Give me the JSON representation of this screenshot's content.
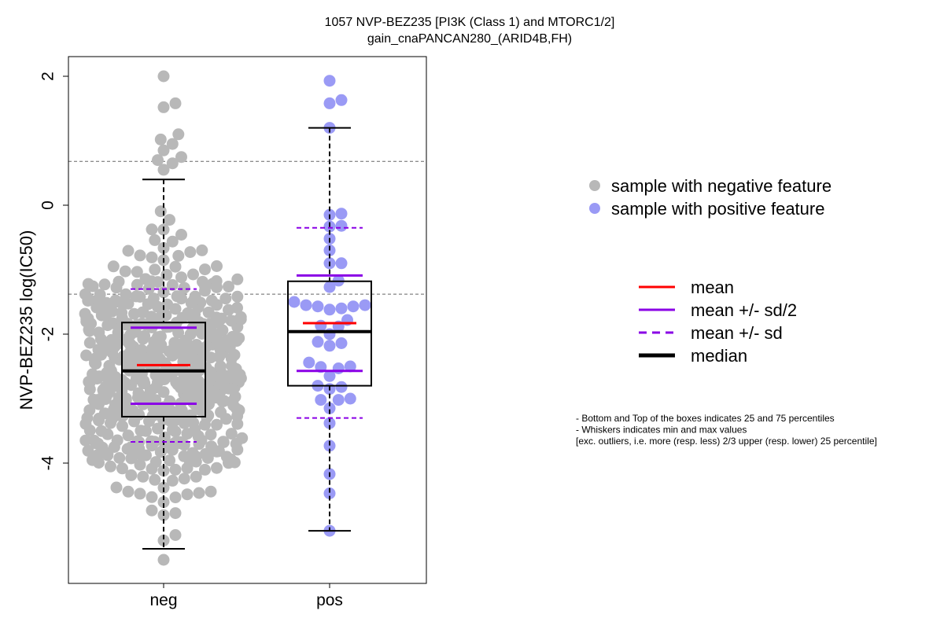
{
  "chart_data": {
    "type": "scatter",
    "subtype": "boxplot-with-beeswarm",
    "title_lines": [
      "1057 NVP-BEZ235 [PI3K (Class 1) and MTORC1/2]",
      "gain_cnaPANCAN280_(ARID4B,FH)"
    ],
    "ylabel": "NVP-BEZ235 log(IC50)",
    "xlabel": "",
    "categories": [
      "neg",
      "pos"
    ],
    "ylim": [
      -5.8,
      2.3
    ],
    "yticks": [
      -4,
      -2,
      0,
      2
    ],
    "ytick_labels": [
      "-4",
      "-2",
      "0",
      "2"
    ],
    "reference_lines": [
      0.68,
      -1.38
    ],
    "colors": {
      "neg_points": "#b8b8b8",
      "pos_points": "#9a9af5",
      "mean": "#ff0000",
      "sd": "#8a00e6",
      "median": "#000000",
      "reference": "#666666"
    },
    "groups": [
      {
        "name": "neg",
        "q1": -3.28,
        "median": -2.57,
        "q3": -1.82,
        "mean": -2.48,
        "mean_minus_half_sd": -3.08,
        "mean_plus_half_sd": -1.9,
        "mean_minus_sd": -3.67,
        "mean_plus_sd": -1.3,
        "whisker_low": -5.33,
        "whisker_high": 0.4,
        "n_points_approx": 560,
        "points": []
      },
      {
        "name": "pos",
        "q1": -2.8,
        "median": -1.96,
        "q3": -1.18,
        "mean": -1.83,
        "mean_minus_half_sd": -2.57,
        "mean_plus_half_sd": -1.09,
        "mean_minus_sd": -3.3,
        "mean_plus_sd": -0.35,
        "whisker_low": -5.05,
        "whisker_high": 1.2,
        "points": [
          1.93,
          1.63,
          1.58,
          1.2,
          -0.13,
          -0.15,
          -0.32,
          -0.33,
          -0.52,
          -0.7,
          -0.9,
          -0.9,
          -1.17,
          -1.27,
          -1.5,
          -1.55,
          -1.55,
          -1.57,
          -1.57,
          -1.6,
          -1.62,
          -1.78,
          -1.87,
          -1.88,
          -2.0,
          -2.12,
          -2.14,
          -2.18,
          -2.44,
          -2.5,
          -2.51,
          -2.53,
          -2.65,
          -2.8,
          -2.82,
          -2.85,
          -3.0,
          -3.02,
          -3.02,
          -3.15,
          -3.38,
          -3.73,
          -4.17,
          -4.47,
          -5.05
        ]
      }
    ],
    "legend_points": [
      {
        "label": "sample with negative feature",
        "color": "#b8b8b8"
      },
      {
        "label": "sample with positive feature",
        "color": "#9a9af5"
      }
    ],
    "legend_lines": [
      {
        "label": "mean",
        "color": "#ff0000",
        "style": "solid"
      },
      {
        "label": "mean +/- sd/2",
        "color": "#8a00e6",
        "style": "solid"
      },
      {
        "label": "mean +/- sd",
        "color": "#8a00e6",
        "style": "dashed"
      },
      {
        "label": "median",
        "color": "#000000",
        "style": "thick"
      }
    ],
    "notes": [
      "- Bottom and Top of the boxes indicates 25 and 75 percentiles",
      "- Whiskers indicates min and max values",
      "[exc. outliers, i.e. more (resp. less) 2/3 upper (resp. lower) 25 percentile]"
    ]
  }
}
